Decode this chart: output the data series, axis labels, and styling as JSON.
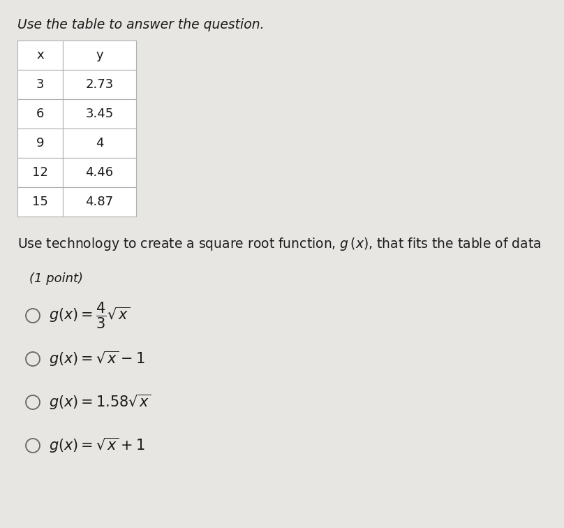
{
  "background_color": "#e8e6e3",
  "header_text": "Use the table to answer the question.",
  "table": {
    "headers": [
      "x",
      "y"
    ],
    "rows": [
      [
        "3",
        "2.73"
      ],
      [
        "6",
        "3.45"
      ],
      [
        "9",
        "4"
      ],
      [
        "12",
        "4.46"
      ],
      [
        "15",
        "4.87"
      ]
    ]
  },
  "question_text": "Use technology to create a square root function, $g\\,(x)$, that fits the table of data",
  "point_text": "(1 point)",
  "options": [
    "$g(x) = \\dfrac{4}{3}\\sqrt{x}$",
    "$g(x) = \\sqrt{x} - 1$",
    "$g(x) = 1.58\\sqrt{x}$",
    "$g(x) = \\sqrt{x} + 1$"
  ],
  "font_size_header": 13.5,
  "font_size_table": 13,
  "font_size_question": 13.5,
  "font_size_point": 13,
  "font_size_option": 15,
  "text_color": "#1a1a1a",
  "table_border_color": "#b0b0b0",
  "cell_bg": "#ffffff"
}
